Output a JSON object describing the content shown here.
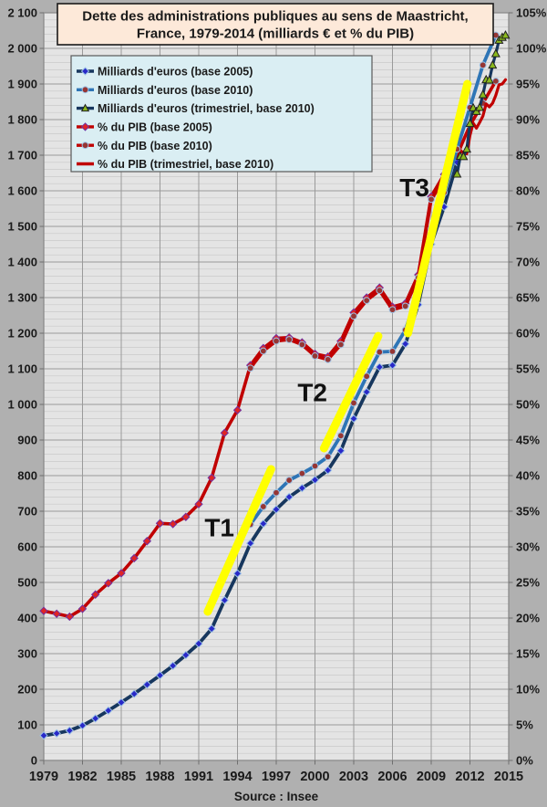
{
  "title": {
    "lines": [
      "Dette des administrations publiques au sens de Maastricht,",
      "France, 1979-2014 (milliards € et % du PIB)"
    ]
  },
  "source": "Source : Insee",
  "colors": {
    "outer_bg": "#b0b0b0",
    "plot_bg": "#e4e4e4",
    "grid_major": "#9a9a9a",
    "grid_minor": "#c9c9c9",
    "frame": "#8a8a8a",
    "navy": "#17375e",
    "blue": "#2e75b6",
    "red": "#c00000",
    "yellow": "#ffff00",
    "title_bg": "#fde9d9",
    "title_border": "#1a1a1a",
    "legend_bg": "#daeef3",
    "legend_border": "#595959",
    "text": "#1a1a1a"
  },
  "legend": {
    "items": [
      {
        "label": "Milliards d'euros (base 2005)",
        "line_color": "#17375e",
        "marker": "diamond",
        "marker_fill": "#2929c8",
        "marker_stroke": "#9dc3e6"
      },
      {
        "label": "Milliards d'euros (base 2010)",
        "line_color": "#2e75b6",
        "marker": "circle",
        "marker_fill": "#963634",
        "marker_stroke": "#9dc3e6"
      },
      {
        "label": "Milliards d'euros (trimestriel, base 2010)",
        "line_color": "#17375e",
        "marker": "triangle",
        "marker_fill": "#8ab81e",
        "marker_stroke": "#1f1f1f"
      },
      {
        "label": "% du PIB (base 2005)",
        "line_color": "#c00000",
        "marker": "diamond",
        "marker_fill": "#e02424",
        "marker_stroke": "#7030a0"
      },
      {
        "label": "% du PIB (base 2010)",
        "line_color": "#c00000",
        "marker": "circle",
        "marker_fill": "#963634",
        "marker_stroke": "#9dc3e6"
      },
      {
        "label": "% du PIB (trimestriel, base 2010)",
        "line_color": "#c00000",
        "marker": "none",
        "marker_fill": "",
        "marker_stroke": ""
      }
    ]
  },
  "chart_data": {
    "type": "line",
    "title": "Dette des administrations publiques au sens de Maastricht, France, 1979-2014 (milliards € et % du PIB)",
    "x_axis": {
      "min": 1979,
      "max": 2015,
      "tick_step": 3,
      "tick_labels": [
        "1979",
        "1982",
        "1985",
        "1988",
        "1991",
        "1994",
        "1997",
        "2000",
        "2003",
        "2006",
        "2009",
        "2012",
        "2015"
      ]
    },
    "y_left": {
      "min": 0,
      "max": 2100,
      "major_step": 100,
      "minor_step": 20,
      "unit": "milliards €"
    },
    "y_right": {
      "min": 0,
      "max": 105,
      "major_step": 5,
      "unit": "% du PIB"
    },
    "grid": true,
    "legend_position": "top-left",
    "series": [
      {
        "name": "% du PIB (base 2005)",
        "axis": "right",
        "color": "#c00000",
        "width": 3.6,
        "marker": "diamond",
        "marker_fill": "#e02424",
        "marker_stroke": "#7030a0",
        "x": [
          1979,
          1980,
          1981,
          1982,
          1983,
          1984,
          1985,
          1986,
          1987,
          1988,
          1989,
          1990,
          1991,
          1992,
          1993,
          1994,
          1995,
          1996,
          1997,
          1998,
          1999,
          2000,
          2001,
          2002,
          2003,
          2004,
          2005,
          2006,
          2007,
          2008,
          2009,
          2010,
          2011
        ],
        "values": [
          21.0,
          20.6,
          20.2,
          21.3,
          23.3,
          24.9,
          26.3,
          28.4,
          30.8,
          33.3,
          33.2,
          34.2,
          36.0,
          39.7,
          46.0,
          49.2,
          55.5,
          57.9,
          59.3,
          59.4,
          58.7,
          57.1,
          56.7,
          58.9,
          62.9,
          65.0,
          66.4,
          63.7,
          64.2,
          68.2,
          79.2,
          82.3,
          85.7
        ]
      },
      {
        "name": "% du PIB (base 2010)",
        "axis": "right",
        "color": "#c00000",
        "width": 3.6,
        "marker": "circle",
        "marker_fill": "#963634",
        "marker_stroke": "#9dc3e6",
        "x": [
          1995,
          1996,
          1997,
          1998,
          1999,
          2000,
          2001,
          2002,
          2003,
          2004,
          2005,
          2006,
          2007,
          2008,
          2009,
          2010,
          2011,
          2012,
          2013,
          2014
        ],
        "values": [
          55.1,
          57.5,
          58.9,
          59.1,
          58.4,
          56.8,
          56.3,
          58.4,
          62.4,
          64.6,
          66.0,
          63.3,
          63.8,
          67.8,
          78.8,
          81.5,
          85.0,
          89.2,
          92.3,
          95.4
        ]
      },
      {
        "name": "% du PIB (trimestriel, base 2010)",
        "axis": "right",
        "color": "#c00000",
        "width": 3.2,
        "marker": "none",
        "marker_fill": "",
        "marker_stroke": "",
        "x": [
          2011.0,
          2011.25,
          2011.5,
          2011.75,
          2012.0,
          2012.25,
          2012.5,
          2012.75,
          2013.0,
          2013.25,
          2013.5,
          2013.75,
          2014.0,
          2014.25,
          2014.5,
          2014.75
        ],
        "values": [
          84.2,
          85.7,
          85.3,
          85.2,
          87.8,
          89.5,
          88.8,
          89.6,
          90.5,
          92.2,
          91.8,
          92.3,
          93.4,
          94.9,
          95.0,
          95.6
        ]
      },
      {
        "name": "Milliards d'euros (base 2005)",
        "axis": "left",
        "color": "#17375e",
        "width": 3.8,
        "marker": "diamond",
        "marker_fill": "#2929c8",
        "marker_stroke": "#9dc3e6",
        "x": [
          1979,
          1980,
          1981,
          1982,
          1983,
          1984,
          1985,
          1986,
          1987,
          1988,
          1989,
          1990,
          1991,
          1992,
          1993,
          1994,
          1995,
          1996,
          1997,
          1998,
          1999,
          2000,
          2001,
          2002,
          2003,
          2004,
          2005,
          2006,
          2007,
          2008,
          2009,
          2010,
          2011
        ],
        "values": [
          70,
          76,
          84,
          98,
          118,
          140,
          163,
          187,
          213,
          239,
          266,
          296,
          328,
          370,
          450,
          525,
          610,
          665,
          705,
          740,
          765,
          788,
          815,
          870,
          960,
          1035,
          1105,
          1110,
          1170,
          1280,
          1450,
          1555,
          1680
        ]
      },
      {
        "name": "Milliards d'euros (base 2010)",
        "axis": "left",
        "color": "#2e75b6",
        "width": 3.8,
        "marker": "circle",
        "marker_fill": "#963634",
        "marker_stroke": "#9dc3e6",
        "x": [
          1995,
          1996,
          1997,
          1998,
          1999,
          2000,
          2001,
          2002,
          2003,
          2004,
          2005,
          2006,
          2007,
          2008,
          2009,
          2010,
          2011,
          2012,
          2013,
          2014
        ],
        "values": [
          663,
          713,
          752,
          787,
          806,
          827,
          853,
          912,
          1004,
          1079,
          1147,
          1149,
          1209,
          1318,
          1493,
          1595,
          1717,
          1834,
          1953,
          2037
        ]
      },
      {
        "name": "Milliards d'euros (trimestriel, base 2010)",
        "axis": "left",
        "color": "#17375e",
        "width": 3.2,
        "marker": "triangle",
        "marker_fill": "#8ab81e",
        "marker_stroke": "#1f1f1f",
        "x": [
          2011.0,
          2011.25,
          2011.5,
          2011.75,
          2012.0,
          2012.25,
          2012.5,
          2012.75,
          2013.0,
          2013.25,
          2013.5,
          2013.75,
          2014.0,
          2014.25,
          2014.5,
          2014.75
        ],
        "values": [
          1647,
          1697,
          1696,
          1717,
          1789,
          1833,
          1823,
          1834,
          1870,
          1912,
          1911,
          1953,
          1985,
          2023,
          2031,
          2037
        ]
      }
    ],
    "annotations": [
      {
        "label": "T1",
        "x1": 1991.7,
        "y1": 418,
        "x2": 1996.6,
        "y2": 818,
        "label_x": 1992.6,
        "label_y": 655,
        "color": "#ffff00"
      },
      {
        "label": "T2",
        "x1": 2000.7,
        "y1": 877,
        "x2": 2004.9,
        "y2": 1192,
        "label_x": 1999.8,
        "label_y": 1035,
        "color": "#ffff00"
      },
      {
        "label": "T3",
        "x1": 2007.2,
        "y1": 1200,
        "x2": 2011.8,
        "y2": 1900,
        "label_x": 2007.7,
        "label_y": 1610,
        "color": "#ffff00"
      }
    ]
  }
}
